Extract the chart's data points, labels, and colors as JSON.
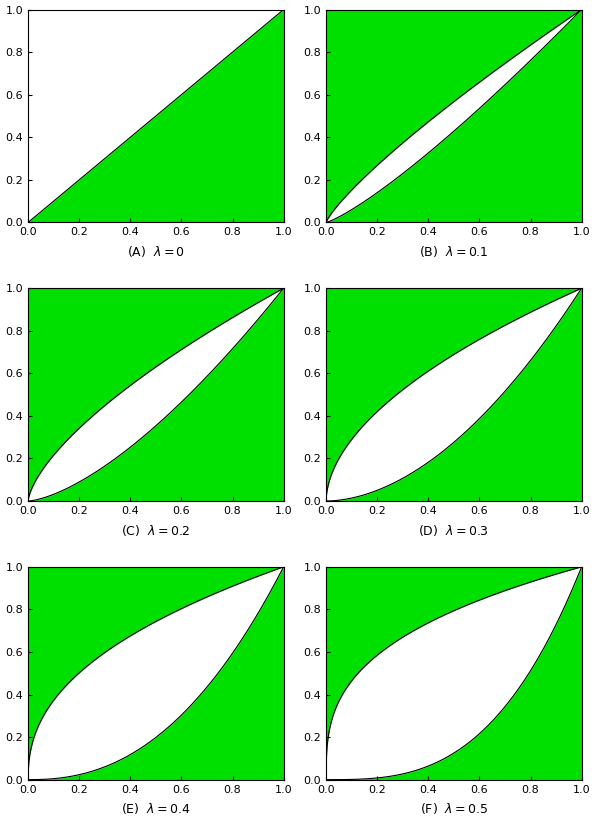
{
  "lambdas": [
    0.0,
    0.1,
    0.2,
    0.3,
    0.4,
    0.5
  ],
  "labels": [
    "(A)",
    "(B)",
    "(C)",
    "(D)",
    "(E)",
    "(F)"
  ],
  "label_names": [
    "\\lambda = 0",
    "\\lambda = 0.1",
    "\\lambda = 0.2",
    "\\lambda = 0.3",
    "\\lambda = 0.4",
    "\\lambda = 0.5"
  ],
  "fill_color": "#00e000",
  "line_color": "black",
  "xlim": [
    0,
    1
  ],
  "ylim": [
    0,
    1
  ],
  "xticks": [
    0,
    0.2,
    0.4,
    0.6,
    0.8,
    1.0
  ],
  "yticks": [
    0,
    0.2,
    0.4,
    0.6,
    0.8,
    1.0
  ],
  "figsize": [
    5.96,
    8.22
  ],
  "dpi": 100
}
